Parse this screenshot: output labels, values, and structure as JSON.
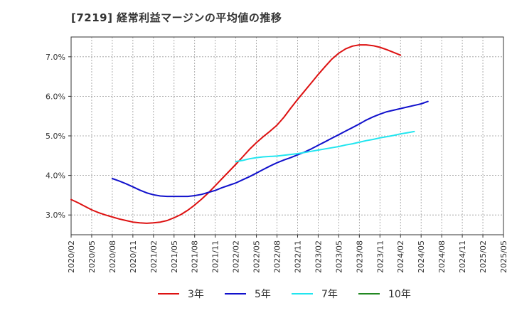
{
  "page": {
    "title": "[7219]  経常利益マージンの平均値の推移"
  },
  "chart_data": {
    "type": "line",
    "title": "[7219]  経常利益マージンの平均値の推移",
    "xlabel": "",
    "ylabel": "",
    "x_ticks": [
      "2020/02",
      "2020/05",
      "2020/08",
      "2020/11",
      "2021/02",
      "2021/05",
      "2021/08",
      "2021/11",
      "2022/02",
      "2022/05",
      "2022/08",
      "2022/11",
      "2023/02",
      "2023/05",
      "2023/08",
      "2023/11",
      "2024/02",
      "2024/05",
      "2024/08",
      "2024/11",
      "2025/02",
      "2025/05"
    ],
    "ylim": [
      2.5,
      7.5
    ],
    "y_ticks": [
      3.0,
      4.0,
      5.0,
      6.0,
      7.0
    ],
    "y_tick_labels": [
      "3.0%",
      "4.0%",
      "5.0%",
      "6.0%",
      "7.0%"
    ],
    "grid": true,
    "legend_position": "bottom",
    "series": [
      {
        "name": "3年",
        "color": "#dd1111",
        "start_index": 0,
        "values": [
          3.39,
          3.31,
          3.22,
          3.13,
          3.06,
          3.0,
          2.95,
          2.9,
          2.86,
          2.82,
          2.8,
          2.79,
          2.8,
          2.82,
          2.86,
          2.93,
          3.01,
          3.12,
          3.25,
          3.4,
          3.56,
          3.74,
          3.92,
          4.1,
          4.28,
          4.47,
          4.66,
          4.83,
          4.98,
          5.12,
          5.27,
          5.47,
          5.7,
          5.92,
          6.13,
          6.34,
          6.55,
          6.75,
          6.94,
          7.09,
          7.2,
          7.27,
          7.3,
          7.3,
          7.28,
          7.24,
          7.18,
          7.11,
          7.04
        ]
      },
      {
        "name": "5年",
        "color": "#1111cc",
        "start_index": 6,
        "values": [
          3.92,
          3.86,
          3.79,
          3.71,
          3.63,
          3.56,
          3.51,
          3.48,
          3.47,
          3.47,
          3.47,
          3.47,
          3.49,
          3.52,
          3.57,
          3.62,
          3.69,
          3.75,
          3.81,
          3.89,
          3.97,
          4.06,
          4.15,
          4.24,
          4.32,
          4.39,
          4.45,
          4.52,
          4.59,
          4.67,
          4.76,
          4.85,
          4.94,
          5.03,
          5.12,
          5.21,
          5.3,
          5.4,
          5.48,
          5.55,
          5.61,
          5.65,
          5.69,
          5.73,
          5.77,
          5.81,
          5.87
        ]
      },
      {
        "name": "7年",
        "color": "#22e5ef",
        "start_index": 24,
        "values": [
          4.35,
          4.38,
          4.42,
          4.45,
          4.47,
          4.48,
          4.49,
          4.51,
          4.53,
          4.55,
          4.58,
          4.61,
          4.64,
          4.67,
          4.7,
          4.73,
          4.77,
          4.8,
          4.84,
          4.88,
          4.91,
          4.95,
          4.98,
          5.01,
          5.05,
          5.08,
          5.11
        ]
      },
      {
        "name": "10年",
        "color": "#228822",
        "start_index": 0,
        "values": []
      }
    ]
  }
}
